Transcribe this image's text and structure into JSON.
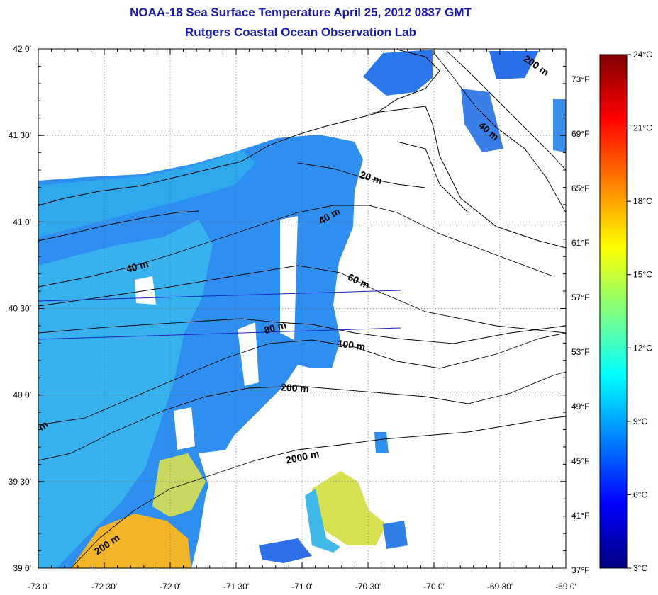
{
  "title": "NOAA-18 Sea Surface Temperature April 25, 2012 0837 GMT",
  "subtitle": "Rutgers Coastal Ocean Observation Lab",
  "map": {
    "lon_range": [
      -73.0,
      -69.0
    ],
    "lat_range": [
      39.0,
      42.0
    ],
    "x_tick_labels": [
      "-73 0'",
      "-72 30'",
      "-72 0'",
      "-71 30'",
      "-71 0'",
      "-70 30'",
      "-70 0'",
      "-69 30'",
      "-69 0'"
    ],
    "y_tick_labels": [
      "42 0'",
      "41 30'",
      "41 0'",
      "40 30'",
      "40 0'",
      "39 30'",
      "39 0'"
    ],
    "grid": "dotted",
    "isobath_labels": [
      "200 m",
      "40 m",
      "20 m",
      "40 m",
      "40 m",
      "60 m",
      "80 m",
      "100 m",
      "200 m",
      "2000 m",
      "200 m",
      "m"
    ]
  },
  "colorbar": {
    "celsius_labels": [
      "24°C",
      "21°C",
      "18°C",
      "15°C",
      "12°C",
      "9°C",
      "6°C",
      "3°C"
    ],
    "fahrenheit_labels": [
      "73°F",
      "69°F",
      "65°F",
      "61°F",
      "57°F",
      "53°F",
      "49°F",
      "45°F",
      "41°F",
      "37°F"
    ],
    "celsius_range": [
      3,
      24
    ],
    "colors": [
      "#000080",
      "#0000ff",
      "#0080ff",
      "#00ffff",
      "#80ff80",
      "#ffff00",
      "#ff8000",
      "#ff0000",
      "#800000"
    ]
  }
}
